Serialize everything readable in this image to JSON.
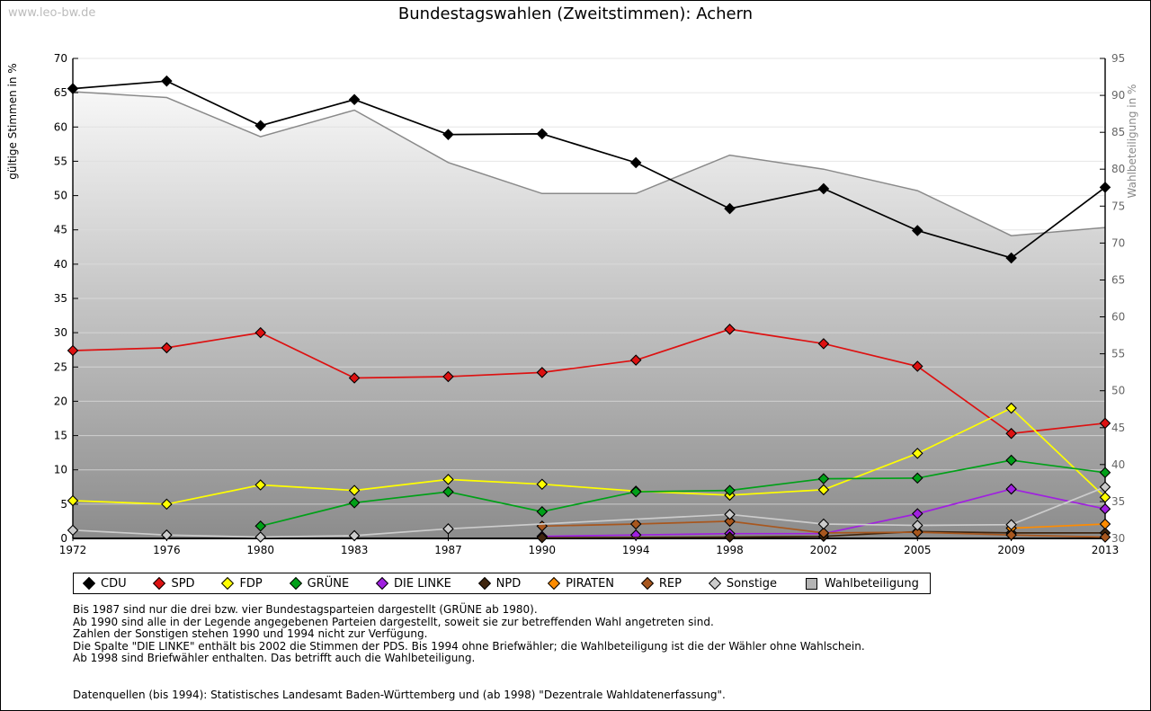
{
  "watermark": "www.leo-bw.de",
  "title": "Bundestagswahlen (Zweitstimmen): Achern",
  "notes": [
    "Bis 1987 sind nur die drei bzw. vier Bundestagsparteien dargestellt (GRÜNE ab 1980).",
    "Ab 1990 sind alle in der Legende angegebenen Parteien dargestellt, soweit sie zur betreffenden Wahl angetreten sind.",
    "Zahlen der Sonstigen stehen 1990 und 1994 nicht zur Verfügung.",
    "Die Spalte \"DIE LINKE\" enthält bis 2002 die Stimmen der PDS. Bis 1994 ohne Briefwähler; die Wahlbeteiligung ist die der Wähler ohne Wahlschein.",
    "Ab 1998 sind Briefwähler enthalten. Das betrifft auch die Wahlbeteiligung."
  ],
  "source": "Datenquellen (bis 1994): Statistisches Landesamt Baden-Württemberg und (ab 1998) \"Dezentrale Wahldatenerfassung\".",
  "chart_data": {
    "type": "line",
    "x": [
      1972,
      1976,
      1980,
      1983,
      1987,
      1990,
      1994,
      1998,
      2002,
      2005,
      2009,
      2013
    ],
    "ylabel_left": "gültige Stimmen in %",
    "ylabel_right": "Wahlbeteiligung in %",
    "y_left_range": [
      0,
      70,
      5
    ],
    "y_right_range": [
      30,
      95,
      5
    ],
    "grid": true,
    "legend_position": "bottom",
    "series": [
      {
        "name": "CDU",
        "color": "#000000",
        "axis": "left",
        "values": [
          65.6,
          66.7,
          60.2,
          64.0,
          58.9,
          59.0,
          54.8,
          48.1,
          51.0,
          44.9,
          40.9,
          51.2
        ]
      },
      {
        "name": "SPD",
        "color": "#dd1111",
        "axis": "left",
        "values": [
          27.4,
          27.8,
          30.0,
          23.4,
          23.6,
          24.2,
          26.0,
          30.5,
          28.4,
          25.1,
          15.3,
          16.8
        ]
      },
      {
        "name": "FDP",
        "color": "#ffff00",
        "axis": "left",
        "values": [
          5.5,
          5.0,
          7.8,
          7.0,
          8.6,
          7.9,
          6.9,
          6.3,
          7.1,
          12.4,
          19.0,
          6.0
        ]
      },
      {
        "name": "GRÜNE",
        "color": "#00a018",
        "axis": "left",
        "values": [
          null,
          null,
          1.8,
          5.2,
          6.8,
          3.9,
          6.8,
          7.0,
          8.7,
          8.8,
          11.4,
          9.6
        ]
      },
      {
        "name": "DIE LINKE",
        "color": "#a020e0",
        "axis": "left",
        "values": [
          null,
          null,
          null,
          null,
          null,
          0.3,
          0.5,
          0.7,
          0.7,
          3.6,
          7.2,
          4.3
        ]
      },
      {
        "name": "NPD",
        "color": "#40260f",
        "axis": "left",
        "values": [
          null,
          null,
          null,
          null,
          null,
          0.1,
          null,
          0.2,
          0.3,
          1.0,
          0.8,
          0.8
        ]
      },
      {
        "name": "PIRATEN",
        "color": "#ff8c00",
        "axis": "left",
        "values": [
          null,
          null,
          null,
          null,
          null,
          null,
          null,
          null,
          null,
          null,
          1.5,
          2.1
        ]
      },
      {
        "name": "REP",
        "color": "#a8571e",
        "axis": "left",
        "values": [
          null,
          null,
          null,
          null,
          null,
          1.8,
          2.1,
          2.5,
          0.8,
          0.9,
          0.5,
          0.2
        ]
      },
      {
        "name": "Sonstige",
        "color": "#cccccc",
        "axis": "left",
        "values": [
          1.2,
          0.5,
          0.2,
          0.4,
          1.4,
          null,
          null,
          3.5,
          2.1,
          1.9,
          2.0,
          7.5
        ]
      }
    ],
    "area_series": {
      "name": "Wahlbeteiligung",
      "color": "#8a8a8a",
      "axis": "right",
      "values": [
        90.5,
        89.7,
        84.4,
        88.0,
        80.9,
        76.7,
        76.7,
        81.9,
        80.0,
        77.1,
        71.0,
        72.1
      ]
    }
  }
}
